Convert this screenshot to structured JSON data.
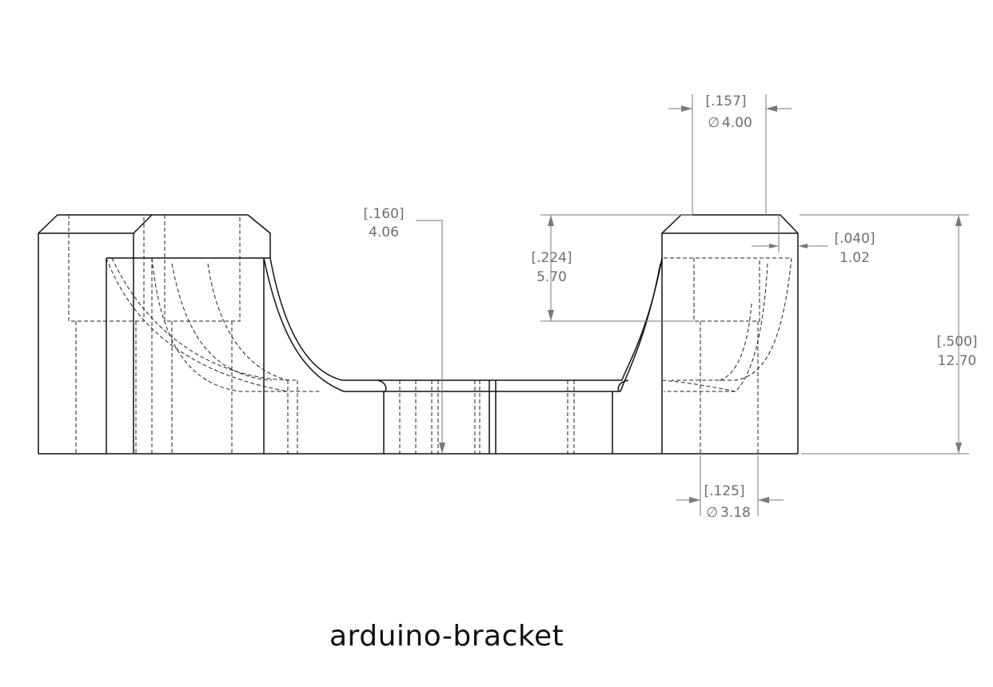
{
  "title": "arduino-bracket",
  "dimensions": {
    "hole_top": {
      "inch": "[.157]",
      "mm": "4.00",
      "symbol": "∅"
    },
    "depth": {
      "inch": "[.160]",
      "mm": "4.06"
    },
    "counterbore": {
      "inch": "[.224]",
      "mm": "5.70"
    },
    "chamfer": {
      "inch": "[.040]",
      "mm": "1.02"
    },
    "height": {
      "inch": "[.500]",
      "mm": "12.70"
    },
    "hole_bottom": {
      "inch": "[.125]",
      "mm": "3.18",
      "symbol": "∅"
    }
  }
}
